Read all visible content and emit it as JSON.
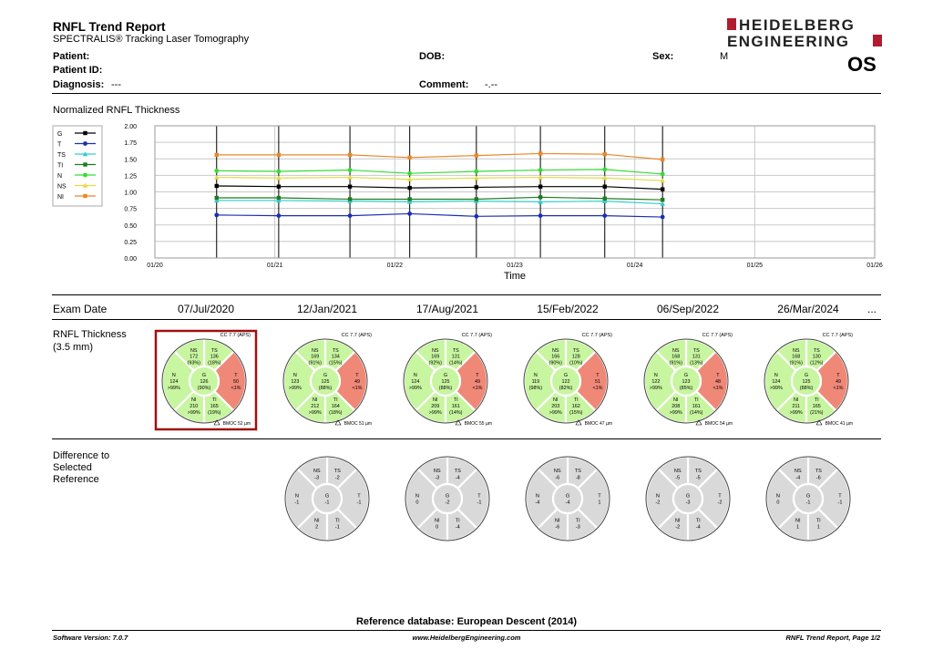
{
  "report": {
    "title": "RNFL Trend Report",
    "subtitle": "SPECTRALIS® Tracking Laser Tomography",
    "logo_line1": "HEIDELBERG",
    "logo_line2": "ENGINEERING",
    "eye": "OS"
  },
  "patient": {
    "patient_label": "Patient:",
    "patient_id_label": "Patient ID:",
    "diagnosis_label": "Diagnosis:",
    "diagnosis_value": "---",
    "dob_label": "DOB:",
    "comment_label": "Comment:",
    "comment_value": "-.--",
    "sex_label": "Sex:",
    "sex_value": "M"
  },
  "chart_data": {
    "type": "line",
    "title": "Normalized RNFL Thickness",
    "xlabel": "Time",
    "ylim": [
      0,
      2
    ],
    "yticks": [
      "0.00",
      "0.25",
      "0.50",
      "0.75",
      "1.00",
      "1.25",
      "1.50",
      "1.75",
      "2.00"
    ],
    "xticks": [
      "01/20",
      "01/21",
      "01/22",
      "01/23",
      "01/24",
      "01/25",
      "01/26"
    ],
    "x": [
      "2020-07-07",
      "2021-01-12",
      "2021-08-17",
      "2022-02-15",
      "2022-09-06",
      "2023-03-20",
      "2023-10-02",
      "2024-03-26"
    ],
    "grid": true,
    "legend_position": "top-left",
    "series": [
      {
        "name": "G",
        "color": "#000000",
        "marker": "square",
        "values": [
          1.09,
          1.08,
          1.08,
          1.06,
          1.07,
          1.08,
          1.08,
          1.04
        ]
      },
      {
        "name": "T",
        "color": "#1a2fb5",
        "marker": "circle",
        "values": [
          0.65,
          0.64,
          0.64,
          0.67,
          0.63,
          0.64,
          0.64,
          0.62
        ]
      },
      {
        "name": "TS",
        "color": "#33cccc",
        "marker": "triangle",
        "values": [
          0.87,
          0.87,
          0.86,
          0.85,
          0.86,
          0.85,
          0.86,
          0.82
        ]
      },
      {
        "name": "TI",
        "color": "#1e7b1e",
        "marker": "square",
        "values": [
          0.91,
          0.91,
          0.89,
          0.89,
          0.89,
          0.92,
          0.9,
          0.88
        ]
      },
      {
        "name": "N",
        "color": "#33dd33",
        "marker": "circle",
        "values": [
          1.32,
          1.31,
          1.33,
          1.28,
          1.31,
          1.33,
          1.34,
          1.27
        ]
      },
      {
        "name": "NS",
        "color": "#e6d84a",
        "marker": "triangle",
        "values": [
          1.22,
          1.21,
          1.22,
          1.19,
          1.21,
          1.22,
          1.21,
          1.17
        ]
      },
      {
        "name": "NI",
        "color": "#e8892a",
        "marker": "square",
        "values": [
          1.56,
          1.56,
          1.56,
          1.52,
          1.55,
          1.58,
          1.57,
          1.49
        ]
      }
    ]
  },
  "exams": {
    "label": "Exam Date",
    "more": "...",
    "thickness_label": "RNFL Thickness",
    "thickness_sub": "(3.5 mm)",
    "difference_label_1": "Difference to",
    "difference_label_2": "Selected",
    "difference_label_3": "Reference",
    "cc_text": "CC 7.7 (APS)",
    "list": [
      {
        "date": "07/Jul/2020",
        "selected": true,
        "NS": [
          "NS",
          "172",
          "(93%)"
        ],
        "TS": [
          "TS",
          "136",
          "(18%)"
        ],
        "N": [
          "N",
          "124",
          ">99%"
        ],
        "G": [
          "G",
          "126",
          "(90%)"
        ],
        "T": [
          "T",
          "50",
          "<1%"
        ],
        "NI": [
          "NI",
          "210",
          ">99%"
        ],
        "TI": [
          "TI",
          "165",
          "(19%)"
        ],
        "bmoc": "BMOC 52 µm",
        "diff": null
      },
      {
        "date": "12/Jan/2021",
        "selected": false,
        "NS": [
          "NS",
          "169",
          "(91%)"
        ],
        "TS": [
          "TS",
          "134",
          "(15%)"
        ],
        "N": [
          "N",
          "123",
          ">99%"
        ],
        "G": [
          "G",
          "125",
          "(88%)"
        ],
        "T": [
          "T",
          "49",
          "<1%"
        ],
        "NI": [
          "NI",
          "212",
          ">99%"
        ],
        "TI": [
          "TI",
          "164",
          "(18%)"
        ],
        "bmoc": "BMOC 51 µm",
        "diff": {
          "NS": "-3",
          "TS": "-2",
          "N": "-1",
          "G": "-1",
          "T": "-1",
          "NI": "2",
          "TI": "-1"
        }
      },
      {
        "date": "17/Aug/2021",
        "selected": false,
        "NS": [
          "NS",
          "169",
          "(92%)"
        ],
        "TS": [
          "TS",
          "131",
          "(14%)"
        ],
        "N": [
          "N",
          "124",
          ">99%"
        ],
        "G": [
          "G",
          "125",
          "(88%)"
        ],
        "T": [
          "T",
          "49",
          "<1%"
        ],
        "NI": [
          "NI",
          "209",
          ">99%"
        ],
        "TI": [
          "TI",
          "161",
          "(14%)"
        ],
        "bmoc": "BMOC 55 µm",
        "diff": {
          "NS": "-3",
          "TS": "-4",
          "N": "0",
          "G": "-2",
          "T": "-1",
          "NI": "0",
          "TI": "-4"
        }
      },
      {
        "date": "15/Feb/2022",
        "selected": false,
        "NS": [
          "NS",
          "166",
          "(90%)"
        ],
        "TS": [
          "TS",
          "128",
          "(10%)"
        ],
        "N": [
          "N",
          "119",
          "(98%)"
        ],
        "G": [
          "G",
          "122",
          "(82%)"
        ],
        "T": [
          "T",
          "51",
          "<1%"
        ],
        "NI": [
          "NI",
          "203",
          ">99%"
        ],
        "TI": [
          "TI",
          "162",
          "(15%)"
        ],
        "bmoc": "BMOC 47 µm",
        "diff": {
          "NS": "-6",
          "TS": "-8",
          "N": "-4",
          "G": "-4",
          "T": "1",
          "NI": "-6",
          "TI": "-3"
        }
      },
      {
        "date": "06/Sep/2022",
        "selected": false,
        "NS": [
          "NS",
          "168",
          "(91%)"
        ],
        "TS": [
          "TS",
          "131",
          "(13%)"
        ],
        "N": [
          "N",
          "122",
          ">99%"
        ],
        "G": [
          "G",
          "123",
          "(85%)"
        ],
        "T": [
          "T",
          "48",
          "<1%"
        ],
        "NI": [
          "NI",
          "208",
          ">99%"
        ],
        "TI": [
          "TI",
          "161",
          "(14%)"
        ],
        "bmoc": "BMOC 54 µm",
        "diff": {
          "NS": "-5",
          "TS": "-5",
          "N": "-2",
          "G": "-3",
          "T": "-2",
          "NI": "-2",
          "TI": "-4"
        }
      },
      {
        "date": "26/Mar/2024",
        "selected": false,
        "NS": [
          "NS",
          "168",
          "(91%)"
        ],
        "TS": [
          "TS",
          "130",
          "(12%)"
        ],
        "N": [
          "N",
          "124",
          ">99%"
        ],
        "G": [
          "G",
          "125",
          "(88%)"
        ],
        "T": [
          "T",
          "49",
          "<1%"
        ],
        "NI": [
          "NI",
          "211",
          ">99%"
        ],
        "TI": [
          "TI",
          "165",
          "(21%)"
        ],
        "bmoc": "BMOC 41 µm",
        "diff": {
          "NS": "-4",
          "TS": "-6",
          "N": "0",
          "G": "-1",
          "T": "-1",
          "NI": "1",
          "TI": "1"
        }
      }
    ]
  },
  "footer": {
    "reference_db": "Reference database: European Descent (2014)",
    "software": "Software Version: 7.0.7",
    "website": "www.HeidelbergEngineering.com",
    "page": "RNFL Trend Report, Page 1/2"
  },
  "colors": {
    "normal": "#c8f5a0",
    "abnormal": "#f08878",
    "diff_fill": "#d9d9d9",
    "selected_border": "#a01010",
    "logo_red": "#b01c2e"
  }
}
